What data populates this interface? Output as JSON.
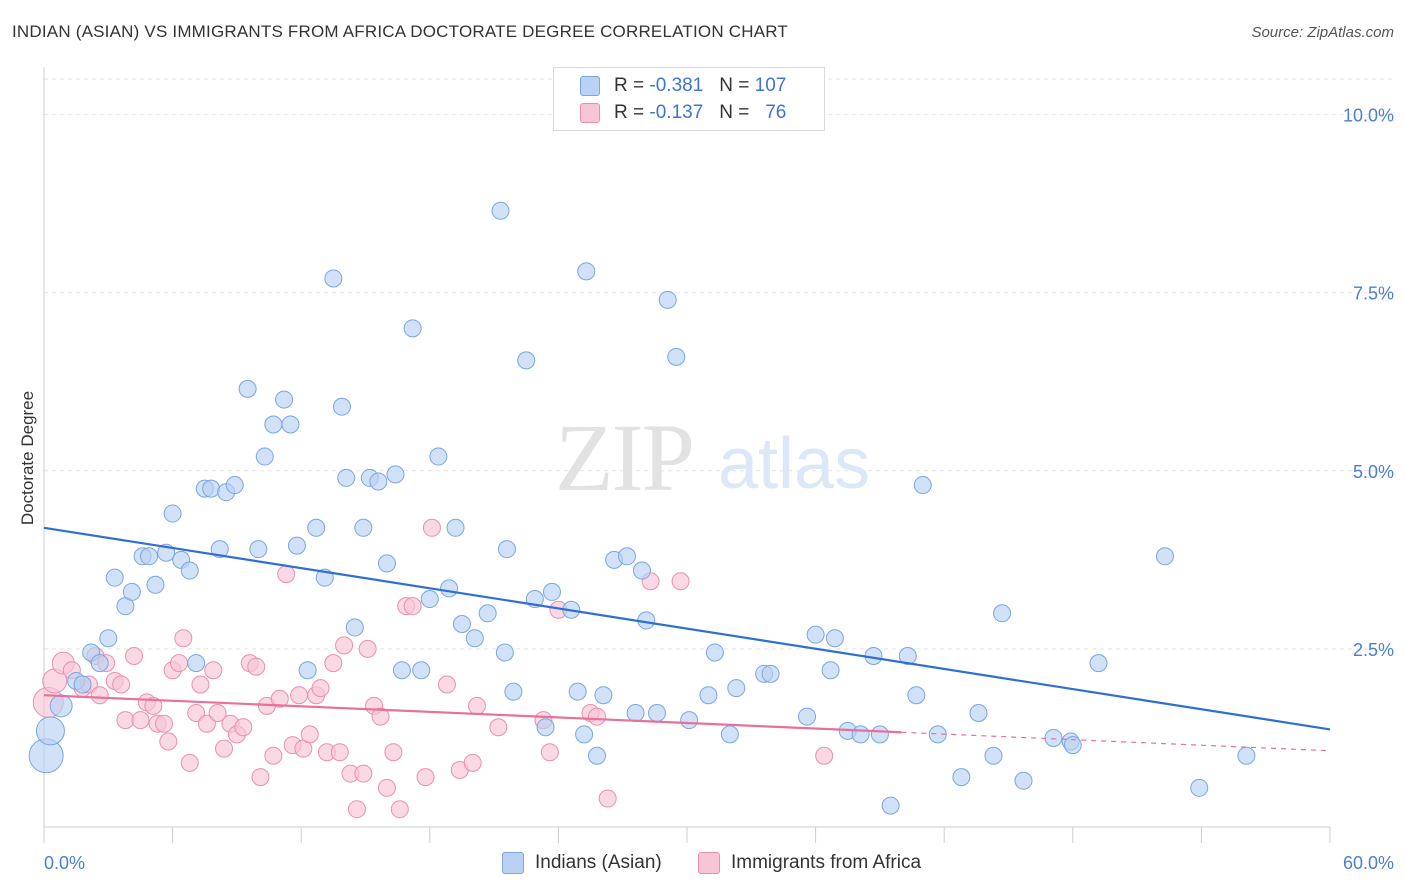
{
  "header": {
    "title": "INDIAN (ASIAN) VS IMMIGRANTS FROM AFRICA DOCTORATE DEGREE CORRELATION CHART",
    "source": "Source: ZipAtlas.com"
  },
  "watermark": {
    "zip": "ZIP",
    "atlas": "atlas"
  },
  "legend": {
    "r_label": "R =",
    "n_label": "N =",
    "rows": [
      {
        "r": "-0.381",
        "n": "107",
        "fill": "#b9d1f3",
        "stroke": "#7aa6e3"
      },
      {
        "r": "-0.137",
        "n": "76",
        "fill": "#f7c5d6",
        "stroke": "#eb8fb0"
      }
    ]
  },
  "chart_data": {
    "type": "scatter",
    "title": "INDIAN (ASIAN) VS IMMIGRANTS FROM AFRICA DOCTORATE DEGREE CORRELATION CHART",
    "xlabel": "",
    "ylabel": "Doctorate Degree",
    "xlim": [
      0,
      60
    ],
    "ylim": [
      0,
      10.5
    ],
    "x_tick_labels": [
      "0.0%",
      "60.0%"
    ],
    "y_ticks": [
      2.5,
      5.0,
      7.5,
      10.0
    ],
    "y_tick_labels": [
      "2.5%",
      "5.0%",
      "7.5%",
      "10.0%"
    ],
    "grid": "horizontal dashed",
    "colors": {
      "blue_line": "#2f6fd1",
      "pink_line": "#e8709a",
      "grid": "#e3e3e3",
      "axis": "#cccccc"
    },
    "series": [
      {
        "name": "Indians (Asian)",
        "color": "#7aa6e3",
        "fill": "#b9d1f3",
        "trend": {
          "x": [
            0,
            60
          ],
          "y": [
            4.2,
            1.37
          ]
        },
        "points": [
          [
            0.1,
            1.0
          ],
          [
            0.3,
            1.35
          ],
          [
            0.8,
            1.7
          ],
          [
            1.5,
            2.05
          ],
          [
            1.8,
            2.0
          ],
          [
            2.2,
            2.45
          ],
          [
            2.6,
            2.3
          ],
          [
            3.0,
            2.65
          ],
          [
            3.3,
            3.5
          ],
          [
            3.8,
            3.1
          ],
          [
            4.1,
            3.3
          ],
          [
            4.6,
            3.8
          ],
          [
            4.9,
            3.8
          ],
          [
            5.2,
            3.4
          ],
          [
            5.7,
            3.85
          ],
          [
            6.0,
            4.4
          ],
          [
            6.4,
            3.75
          ],
          [
            6.8,
            3.6
          ],
          [
            7.1,
            2.3
          ],
          [
            7.5,
            4.75
          ],
          [
            7.8,
            4.75
          ],
          [
            8.2,
            3.9
          ],
          [
            8.5,
            4.7
          ],
          [
            8.9,
            4.8
          ],
          [
            9.5,
            6.15
          ],
          [
            10.0,
            3.9
          ],
          [
            10.3,
            5.2
          ],
          [
            10.7,
            5.65
          ],
          [
            11.2,
            6.0
          ],
          [
            11.5,
            5.65
          ],
          [
            11.8,
            3.95
          ],
          [
            12.3,
            2.2
          ],
          [
            12.7,
            4.2
          ],
          [
            13.1,
            3.5
          ],
          [
            13.5,
            7.7
          ],
          [
            13.9,
            5.9
          ],
          [
            14.1,
            4.9
          ],
          [
            14.5,
            2.8
          ],
          [
            14.9,
            4.2
          ],
          [
            15.2,
            4.9
          ],
          [
            15.6,
            4.85
          ],
          [
            16.0,
            3.7
          ],
          [
            16.4,
            4.95
          ],
          [
            16.7,
            2.2
          ],
          [
            17.2,
            7.0
          ],
          [
            17.6,
            2.2
          ],
          [
            18.0,
            3.2
          ],
          [
            18.4,
            5.2
          ],
          [
            18.9,
            3.35
          ],
          [
            19.2,
            4.2
          ],
          [
            19.5,
            2.85
          ],
          [
            20.1,
            2.65
          ],
          [
            20.7,
            3.0
          ],
          [
            21.3,
            8.65
          ],
          [
            21.6,
            3.9
          ],
          [
            21.9,
            1.9
          ],
          [
            22.5,
            6.55
          ],
          [
            22.9,
            3.2
          ],
          [
            23.4,
            1.4
          ],
          [
            23.7,
            3.3
          ],
          [
            24.6,
            3.05
          ],
          [
            24.9,
            1.9
          ],
          [
            25.2,
            1.3
          ],
          [
            25.3,
            7.8
          ],
          [
            25.8,
            1.0
          ],
          [
            26.1,
            1.85
          ],
          [
            26.6,
            3.75
          ],
          [
            27.2,
            3.8
          ],
          [
            27.6,
            1.6
          ],
          [
            27.9,
            3.6
          ],
          [
            28.1,
            2.9
          ],
          [
            28.6,
            1.6
          ],
          [
            29.1,
            7.4
          ],
          [
            29.5,
            6.6
          ],
          [
            30.1,
            1.5
          ],
          [
            31.0,
            1.85
          ],
          [
            31.3,
            2.45
          ],
          [
            32.0,
            1.3
          ],
          [
            32.3,
            1.95
          ],
          [
            33.6,
            2.15
          ],
          [
            33.9,
            2.15
          ],
          [
            35.6,
            1.55
          ],
          [
            36.0,
            2.7
          ],
          [
            36.7,
            2.2
          ],
          [
            36.9,
            2.65
          ],
          [
            37.5,
            1.35
          ],
          [
            38.1,
            1.3
          ],
          [
            38.7,
            2.4
          ],
          [
            39.0,
            1.3
          ],
          [
            39.5,
            0.3
          ],
          [
            40.3,
            2.4
          ],
          [
            40.7,
            1.85
          ],
          [
            41.0,
            4.8
          ],
          [
            41.7,
            1.3
          ],
          [
            42.8,
            0.7
          ],
          [
            43.6,
            1.6
          ],
          [
            44.3,
            1.0
          ],
          [
            44.7,
            3.0
          ],
          [
            45.7,
            0.65
          ],
          [
            47.1,
            1.25
          ],
          [
            47.9,
            1.2
          ],
          [
            49.2,
            2.3
          ],
          [
            52.3,
            3.8
          ],
          [
            53.9,
            0.55
          ],
          [
            56.1,
            1.0
          ],
          [
            48.0,
            1.15
          ],
          [
            21.5,
            2.45
          ]
        ],
        "sizes_big": {
          "0": 34,
          "1": 28,
          "2": 22
        }
      },
      {
        "name": "Immigrants from Africa",
        "color": "#eb8fb0",
        "fill": "#f7c5d6",
        "trend": {
          "x": [
            0,
            40
          ],
          "y": [
            1.85,
            1.33
          ]
        },
        "trend_dashed": {
          "x": [
            40,
            60
          ],
          "y": [
            1.33,
            1.07
          ]
        },
        "points": [
          [
            0.2,
            1.75
          ],
          [
            0.5,
            2.05
          ],
          [
            0.9,
            2.3
          ],
          [
            1.3,
            2.2
          ],
          [
            1.8,
            1.95
          ],
          [
            2.1,
            2.0
          ],
          [
            2.4,
            2.4
          ],
          [
            2.6,
            1.85
          ],
          [
            2.9,
            2.3
          ],
          [
            3.3,
            2.05
          ],
          [
            3.6,
            2.0
          ],
          [
            3.8,
            1.5
          ],
          [
            4.2,
            2.4
          ],
          [
            4.5,
            1.5
          ],
          [
            4.8,
            1.75
          ],
          [
            5.1,
            1.7
          ],
          [
            5.3,
            1.45
          ],
          [
            5.6,
            1.45
          ],
          [
            5.8,
            1.2
          ],
          [
            6.0,
            2.2
          ],
          [
            6.3,
            2.3
          ],
          [
            6.5,
            2.65
          ],
          [
            6.8,
            0.9
          ],
          [
            7.1,
            1.6
          ],
          [
            7.3,
            2.0
          ],
          [
            7.6,
            1.45
          ],
          [
            7.9,
            2.2
          ],
          [
            8.1,
            1.6
          ],
          [
            8.4,
            1.1
          ],
          [
            8.7,
            1.45
          ],
          [
            9.0,
            1.3
          ],
          [
            9.3,
            1.4
          ],
          [
            9.6,
            2.3
          ],
          [
            9.9,
            2.25
          ],
          [
            10.1,
            0.7
          ],
          [
            10.4,
            1.7
          ],
          [
            10.7,
            1.0
          ],
          [
            11.0,
            1.8
          ],
          [
            11.3,
            3.55
          ],
          [
            11.6,
            1.15
          ],
          [
            11.9,
            1.85
          ],
          [
            12.1,
            1.1
          ],
          [
            12.4,
            1.3
          ],
          [
            12.7,
            1.85
          ],
          [
            12.9,
            1.95
          ],
          [
            13.2,
            1.05
          ],
          [
            13.5,
            2.3
          ],
          [
            13.8,
            1.05
          ],
          [
            14.0,
            2.55
          ],
          [
            14.3,
            0.75
          ],
          [
            14.6,
            0.25
          ],
          [
            14.9,
            0.75
          ],
          [
            15.1,
            2.5
          ],
          [
            15.4,
            1.7
          ],
          [
            15.7,
            1.55
          ],
          [
            16.0,
            0.55
          ],
          [
            16.3,
            1.05
          ],
          [
            16.6,
            0.25
          ],
          [
            16.9,
            3.1
          ],
          [
            17.2,
            3.1
          ],
          [
            17.8,
            0.7
          ],
          [
            18.1,
            4.2
          ],
          [
            18.8,
            2.0
          ],
          [
            19.4,
            0.8
          ],
          [
            20.0,
            0.9
          ],
          [
            20.2,
            1.7
          ],
          [
            21.2,
            1.4
          ],
          [
            23.3,
            1.5
          ],
          [
            23.6,
            1.05
          ],
          [
            24.0,
            3.05
          ],
          [
            25.5,
            1.6
          ],
          [
            25.8,
            1.55
          ],
          [
            26.3,
            0.4
          ],
          [
            28.3,
            3.45
          ],
          [
            29.7,
            3.45
          ],
          [
            36.4,
            1.0
          ]
        ],
        "sizes_big": {
          "0": 30,
          "1": 24,
          "2": 22
        }
      }
    ]
  },
  "bottom_legend": [
    {
      "label": "Indians (Asian)",
      "fill": "#b9d1f3",
      "stroke": "#7aa6e3"
    },
    {
      "label": "Immigrants from Africa",
      "fill": "#f7c5d6",
      "stroke": "#eb8fb0"
    }
  ]
}
